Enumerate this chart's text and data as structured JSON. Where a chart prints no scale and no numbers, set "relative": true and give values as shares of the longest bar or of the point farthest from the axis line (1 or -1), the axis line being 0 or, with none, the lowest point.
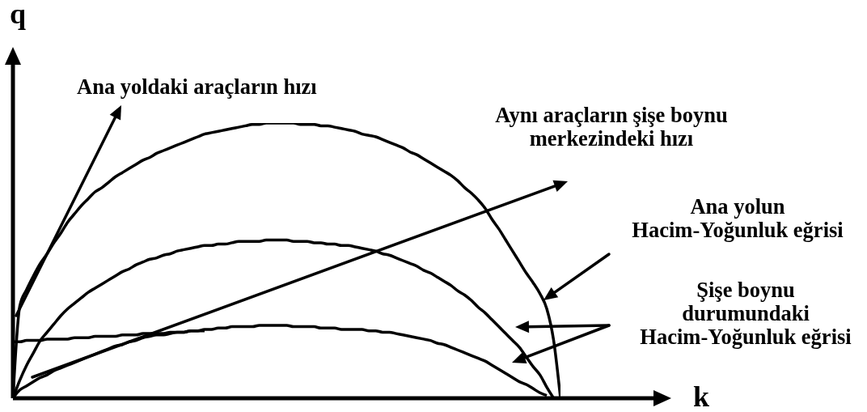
{
  "chart_data": {
    "type": "line",
    "xlabel": "k",
    "ylabel": "q",
    "relative": true,
    "categories": [
      null,
      null,
      null,
      null,
      null,
      null,
      null,
      null,
      null,
      null,
      null,
      null,
      null,
      null,
      null,
      null,
      null,
      null,
      null,
      null,
      null,
      null,
      null,
      null,
      null,
      null,
      null,
      null,
      null,
      null,
      null,
      null,
      null,
      null,
      null,
      null,
      null,
      null,
      null,
      null,
      null,
      null,
      null,
      null,
      null,
      null,
      null,
      null,
      null,
      null,
      null,
      null,
      null,
      null,
      null,
      null,
      null,
      null,
      null,
      null,
      null,
      null,
      null,
      null,
      null,
      null,
      null,
      null,
      null,
      null,
      null,
      null,
      null,
      null,
      null,
      null,
      null,
      null,
      null,
      null,
      null
    ],
    "series": [
      {
        "color": "#000000",
        "values": [
          0,
          0.335,
          0.395,
          0.445,
          0.49,
          0.525,
          0.565,
          0.6,
          0.64,
          0.67,
          0.7,
          0.725,
          0.75,
          0.765,
          0.785,
          0.805,
          0.82,
          0.835,
          0.85,
          0.865,
          0.875,
          0.89,
          0.9,
          0.91,
          0.92,
          0.93,
          0.94,
          0.95,
          0.96,
          0.965,
          0.97,
          0.975,
          0.98,
          0.985,
          0.99,
          0.995,
          0.995,
          1,
          1,
          1,
          1,
          1,
          0.995,
          0.995,
          0.995,
          0.99,
          0.99,
          0.985,
          0.98,
          0.975,
          0.97,
          0.96,
          0.955,
          0.95,
          0.94,
          0.93,
          0.92,
          0.91,
          0.895,
          0.885,
          0.87,
          0.855,
          0.84,
          0.825,
          0.81,
          0.79,
          0.765,
          0.745,
          0.72,
          0.69,
          0.65,
          0.615,
          0.575,
          0.535,
          0.495,
          0.455,
          0.42,
          0.38,
          0.325,
          0.21,
          0
        ]
      },
      {
        "color": "#000000",
        "values": [
          0,
          0.065,
          0.12,
          0.165,
          0.21,
          0.24,
          0.27,
          0.3,
          0.325,
          0.345,
          0.365,
          0.385,
          0.4,
          0.415,
          0.43,
          0.445,
          0.46,
          0.47,
          0.485,
          0.495,
          0.505,
          0.51,
          0.52,
          0.525,
          0.535,
          0.54,
          0.545,
          0.55,
          0.555,
          0.555,
          0.56,
          0.56,
          0.565,
          0.57,
          0.57,
          0.57,
          0.57,
          0.575,
          0.575,
          0.575,
          0.575,
          0.57,
          0.57,
          0.57,
          0.565,
          0.565,
          0.56,
          0.56,
          0.555,
          0.555,
          0.55,
          0.545,
          0.54,
          0.535,
          0.525,
          0.52,
          0.51,
          0.5,
          0.49,
          0.48,
          0.465,
          0.455,
          0.44,
          0.425,
          0.41,
          0.39,
          0.375,
          0.355,
          0.33,
          0.31,
          0.285,
          0.26,
          0.235,
          0.21,
          0.185,
          0.15,
          0.115,
          0.085,
          0.04,
          0,
          null
        ]
      },
      {
        "color": "#000000",
        "values": [
          0,
          0.03,
          0.045,
          0.06,
          0.075,
          0.085,
          0.1,
          0.11,
          0.12,
          0.13,
          0.14,
          0.15,
          0.16,
          0.17,
          0.18,
          0.19,
          0.195,
          0.205,
          0.21,
          0.22,
          0.225,
          0.23,
          0.23,
          0.235,
          0.24,
          0.24,
          0.245,
          0.245,
          0.25,
          0.25,
          0.255,
          0.255,
          0.26,
          0.26,
          0.26,
          0.26,
          0.265,
          0.265,
          0.265,
          0.265,
          0.265,
          0.26,
          0.26,
          0.26,
          0.26,
          0.255,
          0.255,
          0.255,
          0.25,
          0.25,
          0.25,
          0.25,
          0.245,
          0.245,
          0.24,
          0.24,
          0.235,
          0.23,
          0.225,
          0.22,
          0.215,
          0.21,
          0.2,
          0.195,
          0.185,
          0.175,
          0.165,
          0.155,
          0.145,
          0.135,
          0.12,
          0.105,
          0.09,
          0.075,
          0.06,
          0.05,
          0.035,
          0.02,
          0.01,
          null,
          null
        ]
      },
      {
        "color": "#000000",
        "values": [
          0.205,
          0.205,
          0.21,
          0.21,
          0.21,
          0.215,
          0.215,
          0.215,
          0.215,
          0.22,
          0.22,
          0.22,
          0.225,
          0.225,
          0.225,
          0.225,
          0.23,
          0.23,
          0.23,
          0.235,
          0.235,
          0.235,
          0.235,
          0.24,
          0.24,
          0.24,
          0.245,
          0.245,
          0.245,
          null,
          null,
          null,
          null,
          null,
          null,
          null,
          null,
          null,
          null,
          null,
          null,
          null,
          null,
          null,
          null,
          null,
          null,
          null,
          null,
          null,
          null,
          null,
          null,
          null,
          null,
          null,
          null,
          null,
          null,
          null,
          null,
          null,
          null,
          null,
          null,
          null,
          null,
          null,
          null,
          null,
          null,
          null,
          null,
          null,
          null,
          null,
          null,
          null,
          null,
          null,
          null
        ]
      }
    ],
    "annotations": [
      "Ana yoldaki araçların hızı",
      "Aynı araçların şişe boynu\nmerkezindeki hızı",
      "Ana yolun\nHacim-Yoğunluk eğrisi",
      "Şişe boynu\ndurumundaki\nHacim-Yoğunluk eğrisi"
    ]
  }
}
